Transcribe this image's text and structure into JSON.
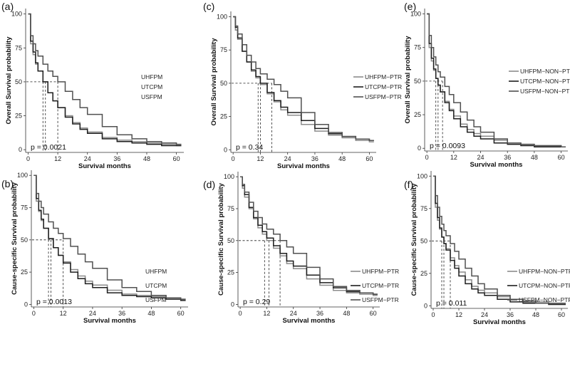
{
  "colors": {
    "UHFPM": "#8c8c8c",
    "UTCPM": "#1e1e1e",
    "USFPM": "#505050"
  },
  "chart_data": [
    {
      "panel": "(a)",
      "type": "line",
      "ylabel": "Overall Survival probability",
      "xlabel": "Survival months",
      "xticks": [
        0,
        12,
        24,
        36,
        48,
        60
      ],
      "yticks": [
        0,
        25,
        50,
        75,
        100
      ],
      "xlim": [
        -1,
        63
      ],
      "ylim": [
        -2,
        104
      ],
      "pvalue": "p = 0.0021",
      "medians": [
        6,
        7,
        12
      ],
      "series": [
        {
          "name": "UHFPM",
          "color": "#8c8c8c",
          "x": [
            0,
            1,
            2,
            3,
            4,
            6,
            8,
            10,
            12,
            15,
            18,
            21,
            24,
            30,
            36,
            42,
            48,
            54,
            60,
            62
          ],
          "y": [
            100,
            78,
            70,
            63,
            58,
            50,
            42,
            36,
            31,
            25,
            20,
            16,
            13,
            9,
            7,
            6,
            5,
            4,
            3,
            3
          ]
        },
        {
          "name": "UTCPM",
          "color": "#1e1e1e",
          "x": [
            0,
            1,
            2,
            3,
            4,
            6,
            8,
            10,
            12,
            15,
            18,
            21,
            24,
            30,
            36,
            42,
            48,
            54,
            60,
            62
          ],
          "y": [
            100,
            80,
            72,
            64,
            58,
            50,
            42,
            36,
            31,
            24,
            19,
            15,
            12,
            8,
            6,
            5,
            4,
            3,
            3,
            3
          ]
        },
        {
          "name": "USFPM",
          "color": "#505050",
          "x": [
            0,
            1,
            2,
            3,
            4,
            6,
            8,
            10,
            12,
            15,
            18,
            21,
            24,
            30,
            36,
            42,
            48,
            54,
            60,
            62
          ],
          "y": [
            100,
            84,
            78,
            73,
            69,
            63,
            58,
            54,
            50,
            43,
            37,
            31,
            26,
            17,
            11,
            8,
            6,
            5,
            4,
            4
          ]
        }
      ],
      "legend": [
        "UHFPM",
        "UTCPM",
        "USFPM"
      ]
    },
    {
      "panel": "(b)",
      "type": "line",
      "ylabel": "Cause-specific Survival probability",
      "xlabel": "Survival months",
      "xticks": [
        0,
        12,
        24,
        36,
        48,
        60
      ],
      "yticks": [
        0,
        25,
        50,
        75,
        100
      ],
      "xlim": [
        -1,
        63
      ],
      "ylim": [
        -2,
        104
      ],
      "pvalue": "p = 0.0013",
      "medians": [
        6,
        7,
        12
      ],
      "series": [
        {
          "name": "UHFPM",
          "color": "#8c8c8c",
          "x": [
            0,
            1,
            2,
            3,
            4,
            6,
            8,
            10,
            12,
            15,
            18,
            21,
            24,
            30,
            36,
            42,
            48,
            54,
            60,
            62
          ],
          "y": [
            100,
            80,
            72,
            65,
            59,
            51,
            44,
            38,
            33,
            27,
            22,
            18,
            15,
            11,
            8,
            7,
            6,
            5,
            4,
            4
          ]
        },
        {
          "name": "UTCPM",
          "color": "#1e1e1e",
          "x": [
            0,
            1,
            2,
            3,
            4,
            6,
            8,
            10,
            12,
            15,
            18,
            21,
            24,
            30,
            36,
            42,
            48,
            54,
            60,
            62
          ],
          "y": [
            100,
            82,
            73,
            66,
            59,
            51,
            44,
            38,
            32,
            25,
            20,
            16,
            13,
            9,
            7,
            6,
            5,
            4,
            3,
            3
          ]
        },
        {
          "name": "USFPM",
          "color": "#505050",
          "x": [
            0,
            1,
            2,
            3,
            4,
            6,
            8,
            10,
            12,
            15,
            18,
            21,
            24,
            30,
            36,
            42,
            48,
            54,
            60,
            62
          ],
          "y": [
            100,
            86,
            80,
            75,
            70,
            64,
            59,
            55,
            51,
            45,
            39,
            33,
            28,
            19,
            13,
            10,
            7,
            5,
            4,
            4
          ]
        }
      ],
      "legend": [
        "UHFPM",
        "UTCPM",
        "USFPM"
      ]
    },
    {
      "panel": "(c)",
      "type": "line",
      "ylabel": "Overall Survival probability",
      "xlabel": "Survival months",
      "xticks": [
        0,
        12,
        24,
        36,
        48,
        60
      ],
      "yticks": [
        0,
        25,
        50,
        75,
        100
      ],
      "xlim": [
        -1,
        63
      ],
      "ylim": [
        -2,
        104
      ],
      "pvalue": "p = 0.34",
      "medians": [
        11,
        12,
        17
      ],
      "series": [
        {
          "name": "UHFPM−PTR",
          "color": "#8c8c8c",
          "x": [
            0,
            1,
            2,
            4,
            6,
            8,
            10,
            12,
            15,
            18,
            21,
            24,
            30,
            36,
            42,
            48,
            54,
            60,
            62
          ],
          "y": [
            100,
            90,
            83,
            74,
            66,
            59,
            54,
            49,
            42,
            36,
            30,
            26,
            19,
            14,
            11,
            9,
            7,
            6,
            6
          ]
        },
        {
          "name": "UTCPM−PTR",
          "color": "#1e1e1e",
          "x": [
            0,
            1,
            2,
            4,
            6,
            8,
            10,
            12,
            15,
            18,
            21,
            24,
            30,
            36,
            42,
            48,
            54,
            60,
            62
          ],
          "y": [
            100,
            92,
            84,
            74,
            66,
            60,
            55,
            50,
            43,
            37,
            32,
            28,
            22,
            16,
            12,
            10,
            8,
            7,
            7
          ]
        },
        {
          "name": "USFPM−PTR",
          "color": "#505050",
          "x": [
            0,
            1,
            2,
            4,
            6,
            8,
            10,
            12,
            15,
            18,
            21,
            24,
            30,
            36,
            42,
            48,
            54,
            60,
            62
          ],
          "y": [
            100,
            93,
            87,
            79,
            71,
            66,
            61,
            57,
            53,
            49,
            44,
            39,
            28,
            19,
            13,
            10,
            8,
            7,
            7
          ]
        }
      ],
      "legend": [
        "UHFPM−PTR",
        "UTCPM−PTR",
        "USFPM−PTR"
      ]
    },
    {
      "panel": "(d)",
      "type": "line",
      "ylabel": "Cause-specific Survival probability",
      "xlabel": "Survival months",
      "xticks": [
        0,
        12,
        24,
        36,
        48,
        60
      ],
      "yticks": [
        0,
        25,
        50,
        75,
        100
      ],
      "xlim": [
        -1,
        63
      ],
      "ylim": [
        -2,
        104
      ],
      "pvalue": "p = 0.29",
      "medians": [
        11,
        13,
        18
      ],
      "series": [
        {
          "name": "UHFPM−PTR",
          "color": "#8c8c8c",
          "x": [
            0,
            1,
            2,
            4,
            6,
            8,
            10,
            12,
            15,
            18,
            21,
            24,
            30,
            36,
            42,
            48,
            54,
            60,
            62
          ],
          "y": [
            100,
            91,
            84,
            75,
            67,
            60,
            55,
            50,
            44,
            38,
            32,
            28,
            20,
            15,
            11,
            9,
            8,
            7,
            7
          ]
        },
        {
          "name": "UTCPM−PTR",
          "color": "#1e1e1e",
          "x": [
            0,
            1,
            2,
            4,
            6,
            8,
            10,
            12,
            15,
            18,
            21,
            24,
            30,
            36,
            42,
            48,
            54,
            60,
            62
          ],
          "y": [
            100,
            93,
            86,
            76,
            68,
            62,
            57,
            52,
            46,
            40,
            34,
            30,
            23,
            17,
            13,
            10,
            9,
            8,
            8
          ]
        },
        {
          "name": "USFPM−PTR",
          "color": "#505050",
          "x": [
            0,
            1,
            2,
            4,
            6,
            8,
            10,
            12,
            15,
            18,
            21,
            24,
            30,
            36,
            42,
            48,
            54,
            60,
            62
          ],
          "y": [
            100,
            94,
            88,
            80,
            73,
            68,
            63,
            59,
            55,
            50,
            45,
            40,
            29,
            20,
            14,
            11,
            9,
            8,
            8
          ]
        }
      ],
      "legend": [
        "UHFPM−PTR",
        "UTCPM−PTR",
        "USFPM−PTR"
      ]
    },
    {
      "panel": "(e)",
      "type": "line",
      "ylabel": "Overall Survival probability",
      "xlabel": "Survival months",
      "xticks": [
        0,
        12,
        24,
        36,
        48,
        60
      ],
      "yticks": [
        0,
        25,
        50,
        75,
        100
      ],
      "xlim": [
        -1,
        63
      ],
      "ylim": [
        -2,
        104
      ],
      "pvalue": "p = 0.0093",
      "medians": [
        4,
        5,
        7
      ],
      "series": [
        {
          "name": "UHFPM−NON−PTR",
          "color": "#8c8c8c",
          "x": [
            0,
            1,
            2,
            3,
            4,
            5,
            6,
            8,
            10,
            12,
            15,
            18,
            21,
            24,
            30,
            36,
            42,
            48,
            54,
            60,
            62
          ],
          "y": [
            100,
            75,
            65,
            58,
            52,
            47,
            42,
            35,
            29,
            24,
            18,
            14,
            11,
            9,
            6,
            4,
            3,
            2,
            2,
            1,
            1
          ]
        },
        {
          "name": "UTCPM−NON−PTR",
          "color": "#1e1e1e",
          "x": [
            0,
            1,
            2,
            3,
            4,
            5,
            6,
            8,
            10,
            12,
            15,
            18,
            21,
            24,
            30,
            36,
            42,
            48,
            54,
            60,
            62
          ],
          "y": [
            100,
            78,
            67,
            59,
            52,
            47,
            42,
            34,
            28,
            22,
            16,
            12,
            9,
            7,
            4,
            3,
            2,
            1,
            1,
            1,
            1
          ]
        },
        {
          "name": "USFPM−NON−PTR",
          "color": "#505050",
          "x": [
            0,
            1,
            2,
            3,
            4,
            5,
            6,
            8,
            10,
            12,
            15,
            18,
            21,
            24,
            30,
            36,
            42,
            48,
            54,
            60,
            62
          ],
          "y": [
            100,
            84,
            75,
            68,
            62,
            57,
            53,
            46,
            40,
            34,
            27,
            21,
            16,
            12,
            7,
            4,
            3,
            2,
            2,
            1,
            1
          ]
        }
      ],
      "legend": [
        "UHFPM−NON−PTR",
        "UTCPM−NON−PTR",
        "USFPM−NON−PTR"
      ]
    },
    {
      "panel": "(f)",
      "type": "line",
      "ylabel": "Cause-specific Survival probability",
      "xlabel": "Survival months",
      "xticks": [
        0,
        12,
        24,
        36,
        48,
        60
      ],
      "yticks": [
        0,
        25,
        50,
        75,
        100
      ],
      "xlim": [
        -1,
        63
      ],
      "ylim": [
        -2,
        104
      ],
      "pvalue": "p = 0.011",
      "medians": [
        4,
        5,
        8
      ],
      "series": [
        {
          "name": "UHFPM−NON−PTR",
          "color": "#8c8c8c",
          "x": [
            0,
            1,
            2,
            3,
            4,
            5,
            6,
            8,
            10,
            12,
            15,
            18,
            21,
            24,
            30,
            36,
            42,
            48,
            54,
            60,
            62
          ],
          "y": [
            100,
            76,
            66,
            59,
            53,
            48,
            44,
            37,
            31,
            26,
            20,
            15,
            12,
            10,
            7,
            5,
            4,
            3,
            2,
            2,
            2
          ]
        },
        {
          "name": "UTCPM−NON−PTR",
          "color": "#1e1e1e",
          "x": [
            0,
            1,
            2,
            3,
            4,
            5,
            6,
            8,
            10,
            12,
            15,
            18,
            21,
            24,
            30,
            36,
            42,
            48,
            54,
            60,
            62
          ],
          "y": [
            100,
            79,
            68,
            60,
            53,
            48,
            43,
            35,
            29,
            23,
            17,
            13,
            10,
            8,
            5,
            3,
            2,
            2,
            1,
            1,
            1
          ]
        },
        {
          "name": "USFPM−NON−PTR",
          "color": "#505050",
          "x": [
            0,
            1,
            2,
            3,
            4,
            5,
            6,
            8,
            10,
            12,
            15,
            18,
            21,
            24,
            30,
            36,
            42,
            48,
            54,
            60,
            62
          ],
          "y": [
            100,
            85,
            76,
            69,
            63,
            58,
            54,
            48,
            42,
            36,
            29,
            23,
            17,
            13,
            8,
            5,
            3,
            2,
            2,
            2,
            2
          ]
        }
      ],
      "legend": [
        "UHFPM−NON−PTR",
        "UTCPM−NON−PTR",
        "USFPM−NON−PTR"
      ]
    }
  ]
}
